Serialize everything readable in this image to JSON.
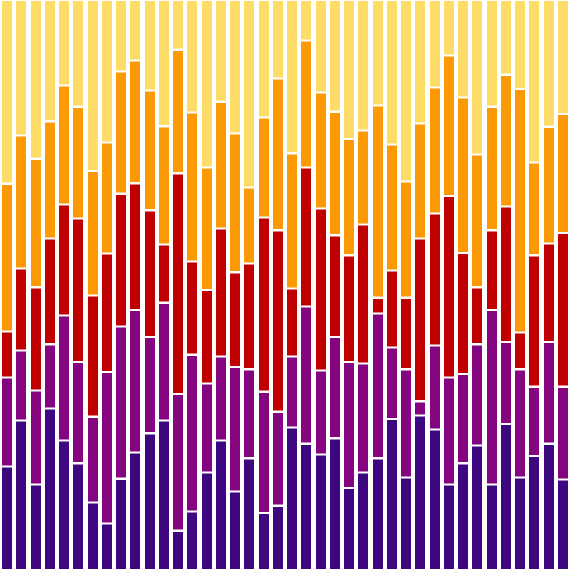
{
  "chart_data": {
    "type": "bar",
    "stacked": true,
    "ylim": [
      0,
      800
    ],
    "series": [
      {
        "color": "#3d0780",
        "values": [
          145,
          210,
          120,
          227,
          182,
          150,
          95,
          65,
          128,
          165,
          192,
          210,
          55,
          82,
          137,
          182,
          110,
          157,
          80,
          90,
          200,
          177,
          162,
          185,
          115,
          137,
          157,
          212,
          130,
          217,
          197,
          120,
          150,
          175,
          120,
          205,
          130,
          160,
          177,
          127
        ]
      },
      {
        "color": "#850480",
        "values": [
          125,
          98,
          132,
          90,
          175,
          142,
          120,
          213,
          214,
          200,
          135,
          165,
          192,
          220,
          125,
          118,
          175,
          125,
          170,
          132,
          100,
          193,
          118,
          142,
          177,
          153,
          203,
          100,
          152,
          20,
          118,
          150,
          125,
          142,
          245,
          115,
          152,
          97,
          143,
          130
        ]
      },
      {
        "color": "#c00000",
        "values": [
          65,
          115,
          145,
          148,
          156,
          201,
          170,
          166,
          186,
          178,
          178,
          82,
          310,
          131,
          131,
          179,
          133,
          148,
          245,
          255,
          95,
          195,
          227,
          143,
          150,
          195,
          22,
          108,
          100,
          228,
          185,
          255,
          170,
          80,
          112,
          190,
          51,
          185,
          138,
          216
        ]
      },
      {
        "color": "#fb9a05",
        "values": [
          207,
          187,
          180,
          165,
          167,
          157,
          175,
          156,
          172,
          172,
          168,
          166,
          173,
          209,
          172,
          178,
          195,
          107,
          140,
          213,
          190,
          178,
          163,
          173,
          163,
          132,
          270,
          177,
          163,
          162,
          177,
          197,
          218,
          186,
          173,
          185,
          342,
          130,
          164,
          167
        ]
      },
      {
        "color": "#fedc68",
        "values": [
          258,
          190,
          223,
          170,
          120,
          150,
          240,
          200,
          100,
          85,
          127,
          177,
          70,
          158,
          235,
          143,
          187,
          263,
          165,
          110,
          215,
          57,
          130,
          157,
          195,
          183,
          148,
          203,
          255,
          173,
          123,
          78,
          137,
          217,
          150,
          105,
          125,
          228,
          178,
          160
        ]
      }
    ]
  }
}
